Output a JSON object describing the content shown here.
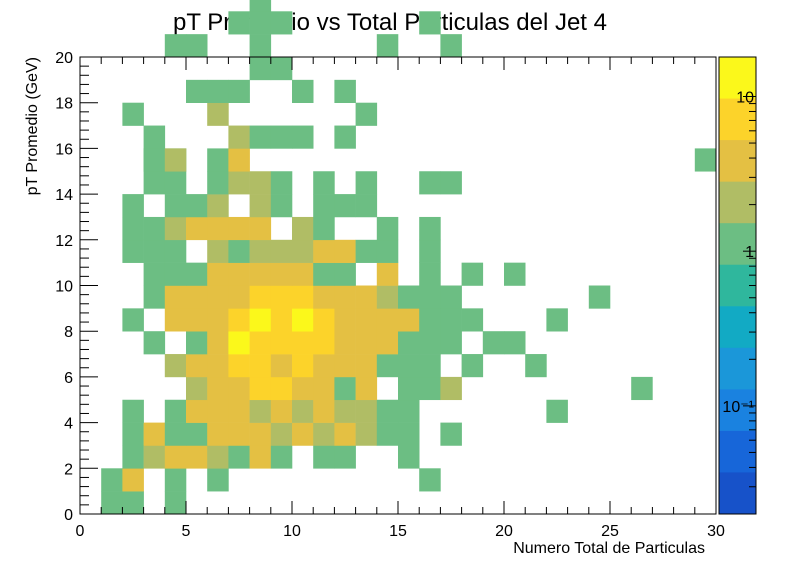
{
  "chart_data": {
    "type": "heatmap",
    "title": "pT Promedio vs Total Particulas del Jet 4",
    "xlabel": "Numero Total de Particulas",
    "ylabel": "pT Promedio (GeV)",
    "xlim": [
      0,
      30
    ],
    "ylim": [
      0,
      20
    ],
    "x_ticks": [
      "0",
      "5",
      "10",
      "15",
      "20",
      "25",
      "30"
    ],
    "y_ticks": [
      "0",
      "2",
      "4",
      "6",
      "8",
      "10",
      "12",
      "14",
      "16",
      "18",
      "20"
    ],
    "bin_width_x": 1,
    "bin_width_y": 1,
    "color_scale": "log",
    "z_range": [
      0.02,
      18
    ],
    "colorbar_labels": [
      {
        "value": 10,
        "label": "10"
      },
      {
        "value": 1,
        "label": "1"
      },
      {
        "value": 0.1,
        "label": "10⁻¹"
      }
    ],
    "colorbar_colors": [
      "#fbf81b",
      "#fcd32a",
      "#e4c043",
      "#b0bd65",
      "#6cbe83",
      "#2fb79d",
      "#12aac4",
      "#1b97d9",
      "#1a82e0",
      "#1766d9",
      "#1752c9"
    ],
    "bins": [
      [
        1,
        0,
        1
      ],
      [
        2,
        0,
        1
      ],
      [
        4,
        0,
        1
      ],
      [
        1,
        1,
        1
      ],
      [
        2,
        1,
        3
      ],
      [
        4,
        1,
        1
      ],
      [
        6,
        1,
        1
      ],
      [
        16,
        1,
        1
      ],
      [
        2,
        2,
        1
      ],
      [
        3,
        2,
        2
      ],
      [
        4,
        2,
        3
      ],
      [
        5,
        2,
        3
      ],
      [
        6,
        2,
        2
      ],
      [
        7,
        2,
        1
      ],
      [
        8,
        2,
        3
      ],
      [
        9,
        2,
        1
      ],
      [
        11,
        2,
        1
      ],
      [
        12,
        2,
        1
      ],
      [
        15,
        2,
        1
      ],
      [
        2,
        3,
        1
      ],
      [
        3,
        3,
        3
      ],
      [
        4,
        3,
        1
      ],
      [
        5,
        3,
        1
      ],
      [
        6,
        3,
        4
      ],
      [
        7,
        3,
        5
      ],
      [
        8,
        3,
        4
      ],
      [
        9,
        3,
        2
      ],
      [
        10,
        3,
        3
      ],
      [
        11,
        3,
        2
      ],
      [
        12,
        3,
        3
      ],
      [
        13,
        3,
        2
      ],
      [
        14,
        3,
        1
      ],
      [
        15,
        3,
        1
      ],
      [
        17,
        3,
        1
      ],
      [
        2,
        4,
        1
      ],
      [
        4,
        4,
        1
      ],
      [
        5,
        4,
        3
      ],
      [
        6,
        4,
        3
      ],
      [
        7,
        4,
        4
      ],
      [
        8,
        4,
        2
      ],
      [
        9,
        4,
        3
      ],
      [
        10,
        4,
        2
      ],
      [
        11,
        4,
        3
      ],
      [
        12,
        4,
        2
      ],
      [
        13,
        4,
        2
      ],
      [
        14,
        4,
        1
      ],
      [
        15,
        4,
        1
      ],
      [
        22,
        4,
        1
      ],
      [
        5,
        5,
        2
      ],
      [
        6,
        5,
        4
      ],
      [
        7,
        5,
        5
      ],
      [
        8,
        5,
        6
      ],
      [
        9,
        5,
        6
      ],
      [
        10,
        5,
        5
      ],
      [
        11,
        5,
        5
      ],
      [
        12,
        5,
        1
      ],
      [
        13,
        5,
        5
      ],
      [
        15,
        5,
        1
      ],
      [
        16,
        5,
        1
      ],
      [
        17,
        5,
        2
      ],
      [
        26,
        5,
        1
      ],
      [
        4,
        6,
        2
      ],
      [
        5,
        6,
        5
      ],
      [
        6,
        6,
        4
      ],
      [
        7,
        6,
        6
      ],
      [
        8,
        6,
        8
      ],
      [
        9,
        6,
        5
      ],
      [
        10,
        6,
        6
      ],
      [
        11,
        6,
        5
      ],
      [
        12,
        6,
        4
      ],
      [
        13,
        6,
        4
      ],
      [
        14,
        6,
        1
      ],
      [
        15,
        6,
        1
      ],
      [
        16,
        6,
        1
      ],
      [
        18,
        6,
        1
      ],
      [
        21,
        6,
        1
      ],
      [
        3,
        7,
        1
      ],
      [
        5,
        7,
        1
      ],
      [
        6,
        7,
        4
      ],
      [
        7,
        7,
        10
      ],
      [
        8,
        7,
        8
      ],
      [
        9,
        7,
        8
      ],
      [
        10,
        7,
        8
      ],
      [
        11,
        7,
        8
      ],
      [
        12,
        7,
        3
      ],
      [
        13,
        7,
        4
      ],
      [
        14,
        7,
        3
      ],
      [
        15,
        7,
        1
      ],
      [
        16,
        7,
        1
      ],
      [
        17,
        7,
        1
      ],
      [
        19,
        7,
        1
      ],
      [
        20,
        7,
        1
      ],
      [
        2,
        8,
        1
      ],
      [
        4,
        8,
        4
      ],
      [
        5,
        8,
        4
      ],
      [
        6,
        8,
        4
      ],
      [
        7,
        8,
        8
      ],
      [
        8,
        8,
        10
      ],
      [
        9,
        8,
        8
      ],
      [
        10,
        8,
        10
      ],
      [
        11,
        8,
        8
      ],
      [
        12,
        8,
        3
      ],
      [
        13,
        8,
        4
      ],
      [
        14,
        8,
        3
      ],
      [
        15,
        8,
        3
      ],
      [
        16,
        8,
        1
      ],
      [
        17,
        8,
        1
      ],
      [
        18,
        8,
        1
      ],
      [
        22,
        8,
        1
      ],
      [
        3,
        9,
        1
      ],
      [
        4,
        9,
        3
      ],
      [
        5,
        9,
        3
      ],
      [
        6,
        9,
        4
      ],
      [
        7,
        9,
        5
      ],
      [
        8,
        9,
        6
      ],
      [
        9,
        9,
        6
      ],
      [
        10,
        9,
        6
      ],
      [
        11,
        9,
        5
      ],
      [
        12,
        9,
        3
      ],
      [
        13,
        9,
        3
      ],
      [
        14,
        9,
        2
      ],
      [
        15,
        9,
        1
      ],
      [
        16,
        9,
        1
      ],
      [
        17,
        9,
        1
      ],
      [
        24,
        9,
        1
      ],
      [
        3,
        10,
        1
      ],
      [
        4,
        10,
        1
      ],
      [
        5,
        10,
        1
      ],
      [
        6,
        10,
        3
      ],
      [
        7,
        10,
        5
      ],
      [
        8,
        10,
        3
      ],
      [
        9,
        10,
        5
      ],
      [
        10,
        10,
        5
      ],
      [
        11,
        10,
        1
      ],
      [
        12,
        10,
        1
      ],
      [
        14,
        10,
        3
      ],
      [
        16,
        10,
        1
      ],
      [
        18,
        10,
        1
      ],
      [
        20,
        10,
        1
      ],
      [
        2,
        11,
        1
      ],
      [
        3,
        11,
        1
      ],
      [
        4,
        11,
        1
      ],
      [
        6,
        11,
        2
      ],
      [
        7,
        11,
        1
      ],
      [
        8,
        11,
        2
      ],
      [
        9,
        11,
        2
      ],
      [
        10,
        11,
        2
      ],
      [
        11,
        11,
        3
      ],
      [
        12,
        11,
        3
      ],
      [
        13,
        11,
        1
      ],
      [
        14,
        11,
        1
      ],
      [
        16,
        11,
        1
      ],
      [
        2,
        12,
        1
      ],
      [
        3,
        12,
        1
      ],
      [
        4,
        12,
        2
      ],
      [
        5,
        12,
        3
      ],
      [
        6,
        12,
        4
      ],
      [
        7,
        12,
        5
      ],
      [
        8,
        12,
        4
      ],
      [
        10,
        12,
        2
      ],
      [
        11,
        12,
        1
      ],
      [
        14,
        12,
        1
      ],
      [
        16,
        12,
        1
      ],
      [
        2,
        13,
        1
      ],
      [
        4,
        13,
        1
      ],
      [
        5,
        13,
        1
      ],
      [
        6,
        13,
        2
      ],
      [
        8,
        13,
        2
      ],
      [
        9,
        13,
        1
      ],
      [
        11,
        13,
        1
      ],
      [
        12,
        13,
        1
      ],
      [
        13,
        13,
        1
      ],
      [
        3,
        14,
        1
      ],
      [
        4,
        14,
        1
      ],
      [
        6,
        14,
        1
      ],
      [
        7,
        14,
        2
      ],
      [
        8,
        14,
        2
      ],
      [
        9,
        14,
        1
      ],
      [
        11,
        14,
        1
      ],
      [
        13,
        14,
        1
      ],
      [
        16,
        14,
        1
      ],
      [
        17,
        14,
        1
      ],
      [
        3,
        15,
        1
      ],
      [
        4,
        15,
        1
      ],
      [
        6,
        15,
        1
      ],
      [
        7,
        15,
        3
      ],
      [
        29,
        15,
        1
      ],
      [
        3,
        15,
        1
      ],
      [
        4,
        15,
        2
      ],
      [
        3,
        16,
        1
      ],
      [
        7,
        16,
        2
      ],
      [
        8,
        16,
        1
      ],
      [
        9,
        16,
        1
      ],
      [
        10,
        16,
        1
      ],
      [
        12,
        16,
        1
      ],
      [
        2,
        17,
        1
      ],
      [
        6,
        17,
        2
      ],
      [
        13,
        17,
        1
      ],
      [
        5,
        18,
        1
      ],
      [
        6,
        18,
        1
      ],
      [
        7,
        18,
        1
      ],
      [
        10,
        18,
        1
      ],
      [
        12,
        18,
        1
      ],
      [
        8,
        19,
        1
      ],
      [
        9,
        19,
        1
      ],
      [
        4,
        20,
        1
      ],
      [
        8,
        20,
        1
      ],
      [
        14,
        20,
        1
      ],
      [
        17,
        20,
        1
      ],
      [
        5,
        20,
        1
      ],
      [
        7,
        21,
        1
      ],
      [
        8,
        21,
        1
      ],
      [
        9,
        21,
        1
      ],
      [
        16,
        21,
        1
      ],
      [
        8,
        22,
        1
      ],
      [
        5,
        23,
        1
      ],
      [
        12,
        24,
        1
      ]
    ]
  }
}
